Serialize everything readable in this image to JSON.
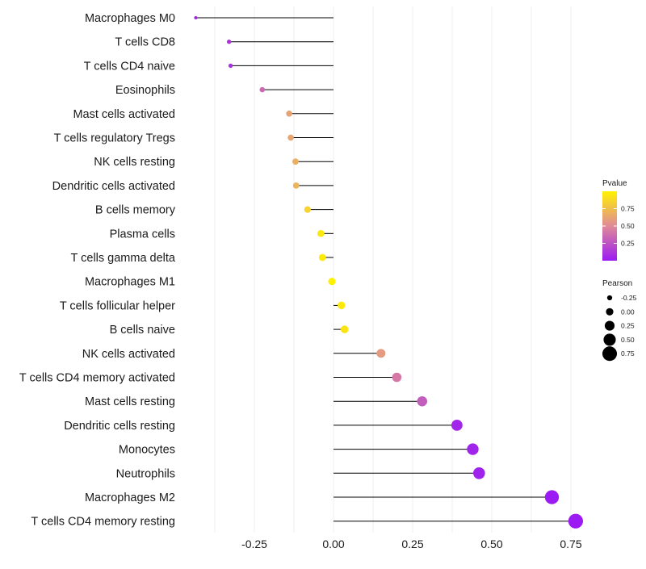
{
  "chart_data": {
    "type": "lollipop",
    "title": "",
    "xlabel": "",
    "ylabel": "",
    "xlim": [
      -0.45,
      0.78
    ],
    "xticks": [
      -0.25,
      0.0,
      0.25,
      0.5,
      0.75
    ],
    "xtick_labels": [
      "-0.25",
      "0.00",
      "0.25",
      "0.50",
      "0.75"
    ],
    "grid": true,
    "categories": [
      "Macrophages M0",
      "T cells CD8",
      "T cells CD4 naive",
      "Eosinophils",
      "Mast cells activated",
      "T cells regulatory  Tregs",
      "NK cells resting",
      "Dendritic cells activated",
      "B cells memory",
      "Plasma cells",
      "T cells gamma delta",
      "Macrophages M1",
      "T cells follicular helper",
      "B cells naive",
      "NK cells activated",
      "T cells CD4 memory activated",
      "Mast cells resting",
      "Dendritic cells resting",
      "Monocytes",
      "Neutrophils",
      "Macrophages M2",
      "T cells CD4 memory resting"
    ],
    "pearson": [
      -0.435,
      -0.33,
      -0.325,
      -0.225,
      -0.14,
      -0.135,
      -0.12,
      -0.118,
      -0.082,
      -0.04,
      -0.035,
      -0.005,
      0.025,
      0.035,
      0.15,
      0.2,
      0.28,
      0.39,
      0.44,
      0.46,
      0.69,
      0.765
    ],
    "pvalue": [
      0.03,
      0.1,
      0.1,
      0.35,
      0.62,
      0.63,
      0.68,
      0.7,
      0.85,
      0.95,
      0.96,
      0.99,
      0.96,
      0.93,
      0.58,
      0.42,
      0.3,
      0.05,
      0.04,
      0.03,
      0.001,
      0.0005
    ],
    "legend": {
      "placement": "right",
      "color": {
        "title": "Pvalue",
        "ticks": [
          0.25,
          0.5,
          0.75
        ],
        "tick_labels": [
          "0.25",
          "0.50",
          "0.75"
        ],
        "low_color": "#9b1bf2",
        "mid_color": "#e08a98",
        "high_color": "#fff200"
      },
      "size": {
        "title": "Pearson",
        "values": [
          -0.25,
          0.0,
          0.25,
          0.5,
          0.75
        ],
        "labels": [
          "-0.25",
          "0.00",
          "0.25",
          "0.50",
          "0.75"
        ]
      }
    },
    "stem_color": "#000000",
    "grid_color": "#ebebeb"
  }
}
